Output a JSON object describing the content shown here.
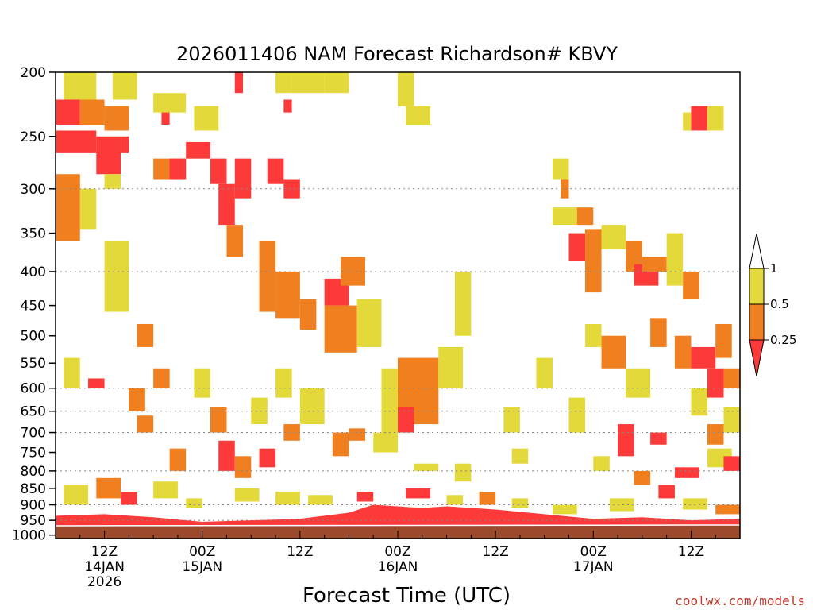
{
  "colors": {
    "ri_0_0.25": "#fd3a3a",
    "ri_0.25_0.5": "#ef7f1f",
    "ri_0.5_1": "#e3d93a",
    "ri_above_1": "#ffffff",
    "ground": "#9b4a2b",
    "credit": "#c0392b"
  },
  "chart_data": {
    "type": "heatmap",
    "title": "2026011406 NAM Forecast Richardson# KBVY",
    "xlabel": "Forecast Time (UTC)",
    "ylabel": "",
    "credit": "coolwx.com/models",
    "xlim_hours": [
      0,
      84
    ],
    "xticks": [
      {
        "hour": 6,
        "label": "12Z",
        "date": "14JAN",
        "year": "2026"
      },
      {
        "hour": 18,
        "label": "00Z",
        "date": "15JAN",
        "year": ""
      },
      {
        "hour": 30,
        "label": "12Z",
        "date": "",
        "year": ""
      },
      {
        "hour": 42,
        "label": "00Z",
        "date": "16JAN",
        "year": ""
      },
      {
        "hour": 54,
        "label": "12Z",
        "date": "",
        "year": ""
      },
      {
        "hour": 66,
        "label": "00Z",
        "date": "17JAN",
        "year": ""
      },
      {
        "hour": 78,
        "label": "12Z",
        "date": "",
        "year": ""
      }
    ],
    "yaxis": {
      "scale": "log-pressure",
      "units": "hPa",
      "top": 200,
      "bottom": 1000
    },
    "yticks": [
      200,
      250,
      300,
      350,
      400,
      450,
      500,
      550,
      600,
      650,
      700,
      750,
      800,
      850,
      900,
      950,
      1000
    ],
    "ylabels": [
      "200",
      "250",
      "300",
      "350",
      "400",
      "450",
      "500",
      "550",
      "600",
      "650",
      "700",
      "750",
      "800",
      "850",
      "900",
      "950",
      "1000"
    ],
    "gridlines_hpa": [
      300,
      400,
      600,
      650,
      700,
      800,
      900,
      950
    ],
    "legend": {
      "labels": [
        "1",
        "0.5",
        "0.25"
      ],
      "bins": [
        {
          "range": "> 1",
          "color": "#ffffff"
        },
        {
          "range": "0.5 - 1",
          "color": "#e3d93a"
        },
        {
          "range": "0.25 - 0.5",
          "color": "#ef7f1f"
        },
        {
          "range": "< 0.25",
          "color": "#fd3a3a"
        }
      ]
    },
    "boundary_layer_top_hpa": {
      "hours": [
        0,
        6,
        12,
        18,
        24,
        30,
        36,
        39,
        42,
        45,
        48,
        54,
        60,
        66,
        72,
        78,
        84
      ],
      "values": [
        935,
        930,
        940,
        955,
        950,
        945,
        925,
        900,
        905,
        910,
        905,
        915,
        930,
        945,
        940,
        950,
        945
      ]
    },
    "cells": [
      {
        "h0": 1,
        "h1": 5,
        "p0": 200,
        "p1": 220,
        "c": "y"
      },
      {
        "h0": 0,
        "h1": 3,
        "p0": 220,
        "p1": 240,
        "c": "r"
      },
      {
        "h0": 3,
        "h1": 6,
        "p0": 220,
        "p1": 240,
        "c": "o"
      },
      {
        "h0": 6,
        "h1": 9,
        "p0": 225,
        "p1": 245,
        "c": "o"
      },
      {
        "h0": 7,
        "h1": 10,
        "p0": 200,
        "p1": 220,
        "c": "y"
      },
      {
        "h0": 0,
        "h1": 5,
        "p0": 245,
        "p1": 265,
        "c": "r"
      },
      {
        "h0": 5,
        "h1": 8,
        "p0": 250,
        "p1": 285,
        "c": "r"
      },
      {
        "h0": 8,
        "h1": 9,
        "p0": 250,
        "p1": 265,
        "c": "r"
      },
      {
        "h0": 0,
        "h1": 3,
        "p0": 285,
        "p1": 360,
        "c": "o"
      },
      {
        "h0": 3,
        "h1": 5,
        "p0": 300,
        "p1": 345,
        "c": "y"
      },
      {
        "h0": 6,
        "h1": 8,
        "p0": 285,
        "p1": 300,
        "c": "y"
      },
      {
        "h0": 12,
        "h1": 16,
        "p0": 215,
        "p1": 230,
        "c": "y"
      },
      {
        "h0": 13,
        "h1": 14,
        "p0": 230,
        "p1": 240,
        "c": "r"
      },
      {
        "h0": 12,
        "h1": 16,
        "p0": 270,
        "p1": 290,
        "c": "o"
      },
      {
        "h0": 14,
        "h1": 16,
        "p0": 270,
        "p1": 290,
        "c": "r"
      },
      {
        "h0": 16,
        "h1": 19,
        "p0": 255,
        "p1": 270,
        "c": "r"
      },
      {
        "h0": 17,
        "h1": 20,
        "p0": 225,
        "p1": 245,
        "c": "y"
      },
      {
        "h0": 19,
        "h1": 21,
        "p0": 270,
        "p1": 295,
        "c": "r"
      },
      {
        "h0": 20,
        "h1": 22,
        "p0": 295,
        "p1": 340,
        "c": "r"
      },
      {
        "h0": 21,
        "h1": 23,
        "p0": 340,
        "p1": 380,
        "c": "o"
      },
      {
        "h0": 22,
        "h1": 24,
        "p0": 270,
        "p1": 310,
        "c": "r"
      },
      {
        "h0": 22,
        "h1": 23,
        "p0": 200,
        "p1": 215,
        "c": "r"
      },
      {
        "h0": 26,
        "h1": 28,
        "p0": 270,
        "p1": 295,
        "c": "r"
      },
      {
        "h0": 28,
        "h1": 30,
        "p0": 290,
        "p1": 310,
        "c": "r"
      },
      {
        "h0": 27,
        "h1": 29,
        "p0": 200,
        "p1": 215,
        "c": "y"
      },
      {
        "h0": 28,
        "h1": 29,
        "p0": 220,
        "p1": 230,
        "c": "r"
      },
      {
        "h0": 29,
        "h1": 33,
        "p0": 200,
        "p1": 215,
        "c": "y"
      },
      {
        "h0": 33,
        "h1": 36,
        "p0": 200,
        "p1": 215,
        "c": "y"
      },
      {
        "h0": 25,
        "h1": 27,
        "p0": 360,
        "p1": 460,
        "c": "o"
      },
      {
        "h0": 27,
        "h1": 30,
        "p0": 400,
        "p1": 470,
        "c": "o"
      },
      {
        "h0": 30,
        "h1": 32,
        "p0": 440,
        "p1": 490,
        "c": "o"
      },
      {
        "h0": 33,
        "h1": 36,
        "p0": 410,
        "p1": 450,
        "c": "r"
      },
      {
        "h0": 35,
        "h1": 38,
        "p0": 380,
        "p1": 420,
        "c": "o"
      },
      {
        "h0": 33,
        "h1": 37,
        "p0": 450,
        "p1": 530,
        "c": "o"
      },
      {
        "h0": 37,
        "h1": 40,
        "p0": 440,
        "p1": 520,
        "c": "y"
      },
      {
        "h0": 42,
        "h1": 44,
        "p0": 200,
        "p1": 225,
        "c": "y"
      },
      {
        "h0": 43,
        "h1": 46,
        "p0": 225,
        "p1": 240,
        "c": "y"
      },
      {
        "h0": 42,
        "h1": 47,
        "p0": 540,
        "p1": 680,
        "c": "o"
      },
      {
        "h0": 40,
        "h1": 42,
        "p0": 560,
        "p1": 720,
        "c": "y"
      },
      {
        "h0": 47,
        "h1": 50,
        "p0": 520,
        "p1": 600,
        "c": "y"
      },
      {
        "h0": 49,
        "h1": 51,
        "p0": 400,
        "p1": 500,
        "c": "y"
      },
      {
        "h0": 42,
        "h1": 44,
        "p0": 640,
        "p1": 700,
        "c": "r"
      },
      {
        "h0": 39,
        "h1": 42,
        "p0": 700,
        "p1": 750,
        "c": "y"
      },
      {
        "h0": 36,
        "h1": 38,
        "p0": 690,
        "p1": 720,
        "c": "o"
      },
      {
        "h0": 44,
        "h1": 47,
        "p0": 780,
        "p1": 800,
        "c": "y"
      },
      {
        "h0": 61,
        "h1": 64,
        "p0": 320,
        "p1": 340,
        "c": "y"
      },
      {
        "h0": 64,
        "h1": 66,
        "p0": 320,
        "p1": 340,
        "c": "o"
      },
      {
        "h0": 61,
        "h1": 63,
        "p0": 270,
        "p1": 290,
        "c": "y"
      },
      {
        "h0": 62,
        "h1": 63,
        "p0": 290,
        "p1": 310,
        "c": "o"
      },
      {
        "h0": 63,
        "h1": 65,
        "p0": 350,
        "p1": 385,
        "c": "r"
      },
      {
        "h0": 65,
        "h1": 67,
        "p0": 345,
        "p1": 430,
        "c": "o"
      },
      {
        "h0": 67,
        "h1": 70,
        "p0": 340,
        "p1": 370,
        "c": "y"
      },
      {
        "h0": 70,
        "h1": 72,
        "p0": 360,
        "p1": 400,
        "c": "o"
      },
      {
        "h0": 71,
        "h1": 74,
        "p0": 390,
        "p1": 420,
        "c": "r"
      },
      {
        "h0": 72,
        "h1": 75,
        "p0": 380,
        "p1": 400,
        "c": "o"
      },
      {
        "h0": 75,
        "h1": 77,
        "p0": 350,
        "p1": 420,
        "c": "y"
      },
      {
        "h0": 77,
        "h1": 79,
        "p0": 400,
        "p1": 440,
        "c": "o"
      },
      {
        "h0": 77,
        "h1": 78,
        "p0": 230,
        "p1": 245,
        "c": "y"
      },
      {
        "h0": 78,
        "h1": 80,
        "p0": 225,
        "p1": 245,
        "c": "r"
      },
      {
        "h0": 80,
        "h1": 82,
        "p0": 225,
        "p1": 245,
        "c": "y"
      },
      {
        "h0": 67,
        "h1": 70,
        "p0": 500,
        "p1": 560,
        "c": "o"
      },
      {
        "h0": 65,
        "h1": 67,
        "p0": 480,
        "p1": 520,
        "c": "y"
      },
      {
        "h0": 70,
        "h1": 73,
        "p0": 560,
        "p1": 620,
        "c": "y"
      },
      {
        "h0": 73,
        "h1": 75,
        "p0": 470,
        "p1": 520,
        "c": "o"
      },
      {
        "h0": 76,
        "h1": 78,
        "p0": 500,
        "p1": 560,
        "c": "o"
      },
      {
        "h0": 78,
        "h1": 81,
        "p0": 520,
        "p1": 560,
        "c": "r"
      },
      {
        "h0": 81,
        "h1": 83,
        "p0": 480,
        "p1": 540,
        "c": "o"
      },
      {
        "h0": 80,
        "h1": 82,
        "p0": 560,
        "p1": 620,
        "c": "r"
      },
      {
        "h0": 82,
        "h1": 84,
        "p0": 560,
        "p1": 600,
        "c": "o"
      },
      {
        "h0": 73,
        "h1": 75,
        "p0": 700,
        "p1": 730,
        "c": "r"
      },
      {
        "h0": 76,
        "h1": 79,
        "p0": 790,
        "p1": 820,
        "c": "r"
      },
      {
        "h0": 80,
        "h1": 83,
        "p0": 740,
        "p1": 790,
        "c": "y"
      },
      {
        "h0": 82,
        "h1": 84,
        "p0": 760,
        "p1": 800,
        "c": "r"
      },
      {
        "h0": 1,
        "h1": 3,
        "p0": 540,
        "p1": 600,
        "c": "y"
      },
      {
        "h0": 4,
        "h1": 6,
        "p0": 580,
        "p1": 600,
        "c": "r"
      },
      {
        "h0": 6,
        "h1": 9,
        "p0": 360,
        "p1": 460,
        "c": "y"
      },
      {
        "h0": 10,
        "h1": 12,
        "p0": 480,
        "p1": 520,
        "c": "o"
      },
      {
        "h0": 9,
        "h1": 11,
        "p0": 600,
        "p1": 650,
        "c": "o"
      },
      {
        "h0": 10,
        "h1": 12,
        "p0": 660,
        "p1": 700,
        "c": "o"
      },
      {
        "h0": 12,
        "h1": 14,
        "p0": 560,
        "p1": 600,
        "c": "o"
      },
      {
        "h0": 14,
        "h1": 16,
        "p0": 740,
        "p1": 800,
        "c": "o"
      },
      {
        "h0": 17,
        "h1": 19,
        "p0": 560,
        "p1": 620,
        "c": "y"
      },
      {
        "h0": 19,
        "h1": 21,
        "p0": 640,
        "p1": 700,
        "c": "o"
      },
      {
        "h0": 20,
        "h1": 22,
        "p0": 720,
        "p1": 800,
        "c": "r"
      },
      {
        "h0": 22,
        "h1": 24,
        "p0": 760,
        "p1": 820,
        "c": "o"
      },
      {
        "h0": 24,
        "h1": 26,
        "p0": 620,
        "p1": 680,
        "c": "y"
      },
      {
        "h0": 25,
        "h1": 27,
        "p0": 740,
        "p1": 790,
        "c": "r"
      },
      {
        "h0": 27,
        "h1": 29,
        "p0": 560,
        "p1": 620,
        "c": "y"
      },
      {
        "h0": 28,
        "h1": 30,
        "p0": 680,
        "p1": 720,
        "c": "o"
      },
      {
        "h0": 30,
        "h1": 33,
        "p0": 600,
        "p1": 680,
        "c": "y"
      },
      {
        "h0": 34,
        "h1": 36,
        "p0": 700,
        "p1": 760,
        "c": "o"
      },
      {
        "h0": 49,
        "h1": 51,
        "p0": 780,
        "p1": 830,
        "c": "y"
      },
      {
        "h0": 52,
        "h1": 54,
        "p0": 860,
        "p1": 900,
        "c": "o"
      },
      {
        "h0": 55,
        "h1": 57,
        "p0": 640,
        "p1": 700,
        "c": "y"
      },
      {
        "h0": 56,
        "h1": 58,
        "p0": 740,
        "p1": 780,
        "c": "y"
      },
      {
        "h0": 59,
        "h1": 61,
        "p0": 540,
        "p1": 600,
        "c": "y"
      },
      {
        "h0": 63,
        "h1": 65,
        "p0": 620,
        "p1": 700,
        "c": "y"
      },
      {
        "h0": 66,
        "h1": 68,
        "p0": 760,
        "p1": 800,
        "c": "y"
      },
      {
        "h0": 69,
        "h1": 71,
        "p0": 680,
        "p1": 760,
        "c": "r"
      },
      {
        "h0": 71,
        "h1": 73,
        "p0": 800,
        "p1": 840,
        "c": "o"
      },
      {
        "h0": 74,
        "h1": 76,
        "p0": 840,
        "p1": 880,
        "c": "r"
      },
      {
        "h0": 78,
        "h1": 80,
        "p0": 600,
        "p1": 660,
        "c": "y"
      },
      {
        "h0": 80,
        "h1": 82,
        "p0": 680,
        "p1": 730,
        "c": "o"
      },
      {
        "h0": 82,
        "h1": 84,
        "p0": 640,
        "p1": 700,
        "c": "y"
      },
      {
        "h0": 1,
        "h1": 4,
        "p0": 840,
        "p1": 900,
        "c": "y"
      },
      {
        "h0": 5,
        "h1": 8,
        "p0": 820,
        "p1": 880,
        "c": "o"
      },
      {
        "h0": 8,
        "h1": 10,
        "p0": 860,
        "p1": 900,
        "c": "r"
      },
      {
        "h0": 12,
        "h1": 15,
        "p0": 830,
        "p1": 880,
        "c": "y"
      },
      {
        "h0": 16,
        "h1": 18,
        "p0": 880,
        "p1": 910,
        "c": "y"
      },
      {
        "h0": 22,
        "h1": 25,
        "p0": 850,
        "p1": 890,
        "c": "y"
      },
      {
        "h0": 27,
        "h1": 30,
        "p0": 860,
        "p1": 900,
        "c": "y"
      },
      {
        "h0": 31,
        "h1": 34,
        "p0": 870,
        "p1": 900,
        "c": "y"
      },
      {
        "h0": 37,
        "h1": 39,
        "p0": 860,
        "p1": 890,
        "c": "r"
      },
      {
        "h0": 43,
        "h1": 46,
        "p0": 850,
        "p1": 880,
        "c": "r"
      },
      {
        "h0": 48,
        "h1": 50,
        "p0": 870,
        "p1": 900,
        "c": "y"
      },
      {
        "h0": 56,
        "h1": 58,
        "p0": 880,
        "p1": 910,
        "c": "y"
      },
      {
        "h0": 61,
        "h1": 64,
        "p0": 900,
        "p1": 930,
        "c": "y"
      },
      {
        "h0": 68,
        "h1": 71,
        "p0": 880,
        "p1": 920,
        "c": "y"
      },
      {
        "h0": 77,
        "h1": 80,
        "p0": 880,
        "p1": 915,
        "c": "y"
      },
      {
        "h0": 81,
        "h1": 84,
        "p0": 900,
        "p1": 930,
        "c": "o"
      }
    ]
  }
}
